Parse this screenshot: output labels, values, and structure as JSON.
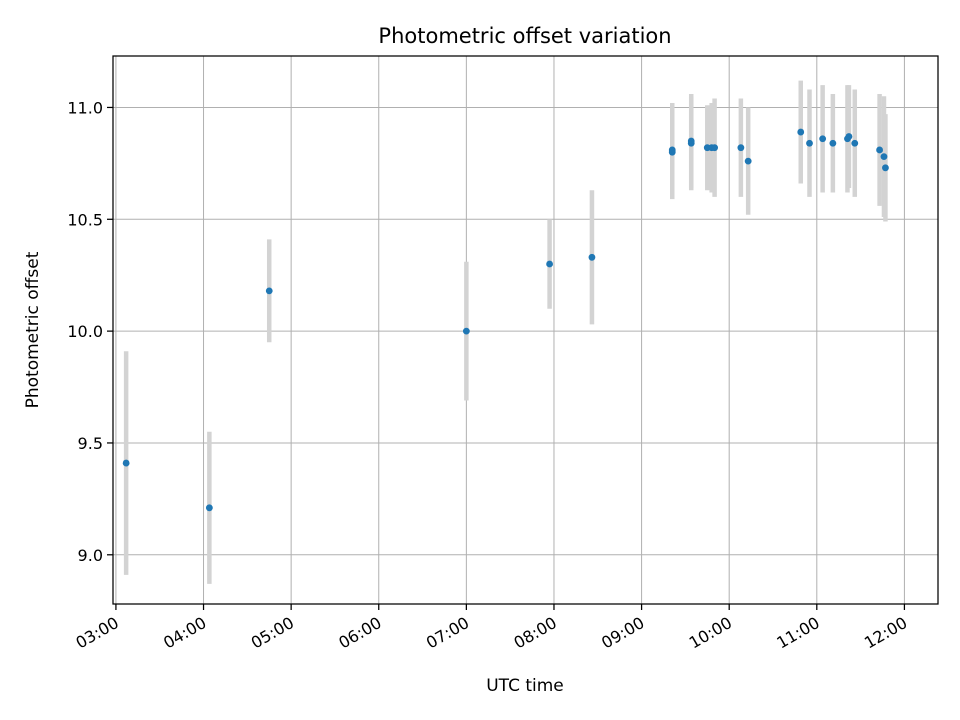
{
  "chart_data": {
    "type": "scatter",
    "title": "Photometric offset variation",
    "xlabel": "UTC time",
    "ylabel": "Photometric offset",
    "x_axis_kind": "time",
    "xlim": [
      "02:58",
      "12:23"
    ],
    "ylim": [
      8.78,
      11.23
    ],
    "grid": true,
    "legend": "none",
    "x_ticks": [
      "03:00",
      "04:00",
      "05:00",
      "06:00",
      "07:00",
      "08:00",
      "09:00",
      "10:00",
      "11:00",
      "12:00"
    ],
    "y_ticks": [
      9.0,
      9.5,
      10.0,
      10.5,
      11.0
    ],
    "colors": {
      "point": "#1f77b4",
      "error_bar": "#d3d3d3"
    },
    "series": [
      {
        "points": [
          {
            "x": "03:07",
            "y": 9.41,
            "err": 0.5
          },
          {
            "x": "04:04",
            "y": 9.21,
            "err": 0.34
          },
          {
            "x": "04:45",
            "y": 10.18,
            "err": 0.23
          },
          {
            "x": "07:00",
            "y": 10.0,
            "err": 0.31
          },
          {
            "x": "07:57",
            "y": 10.3,
            "err": 0.2
          },
          {
            "x": "08:26",
            "y": 10.33,
            "err": 0.3
          },
          {
            "x": "09:21",
            "y": 10.8,
            "err": 0.21
          },
          {
            "x": "09:21",
            "y": 10.81,
            "err": 0.21
          },
          {
            "x": "09:34",
            "y": 10.84,
            "err": 0.21
          },
          {
            "x": "09:34",
            "y": 10.85,
            "err": 0.21
          },
          {
            "x": "09:45",
            "y": 10.82,
            "err": 0.19
          },
          {
            "x": "09:48",
            "y": 10.82,
            "err": 0.2
          },
          {
            "x": "09:50",
            "y": 10.82,
            "err": 0.22
          },
          {
            "x": "10:08",
            "y": 10.82,
            "err": 0.22
          },
          {
            "x": "10:13",
            "y": 10.76,
            "err": 0.24
          },
          {
            "x": "10:49",
            "y": 10.89,
            "err": 0.23
          },
          {
            "x": "10:55",
            "y": 10.84,
            "err": 0.24
          },
          {
            "x": "11:04",
            "y": 10.86,
            "err": 0.24
          },
          {
            "x": "11:11",
            "y": 10.84,
            "err": 0.22
          },
          {
            "x": "11:21",
            "y": 10.86,
            "err": 0.24
          },
          {
            "x": "11:22",
            "y": 10.87,
            "err": 0.23
          },
          {
            "x": "11:26",
            "y": 10.84,
            "err": 0.24
          },
          {
            "x": "11:43",
            "y": 10.81,
            "err": 0.25
          },
          {
            "x": "11:46",
            "y": 10.78,
            "err": 0.27
          },
          {
            "x": "11:47",
            "y": 10.73,
            "err": 0.24
          }
        ]
      }
    ]
  }
}
